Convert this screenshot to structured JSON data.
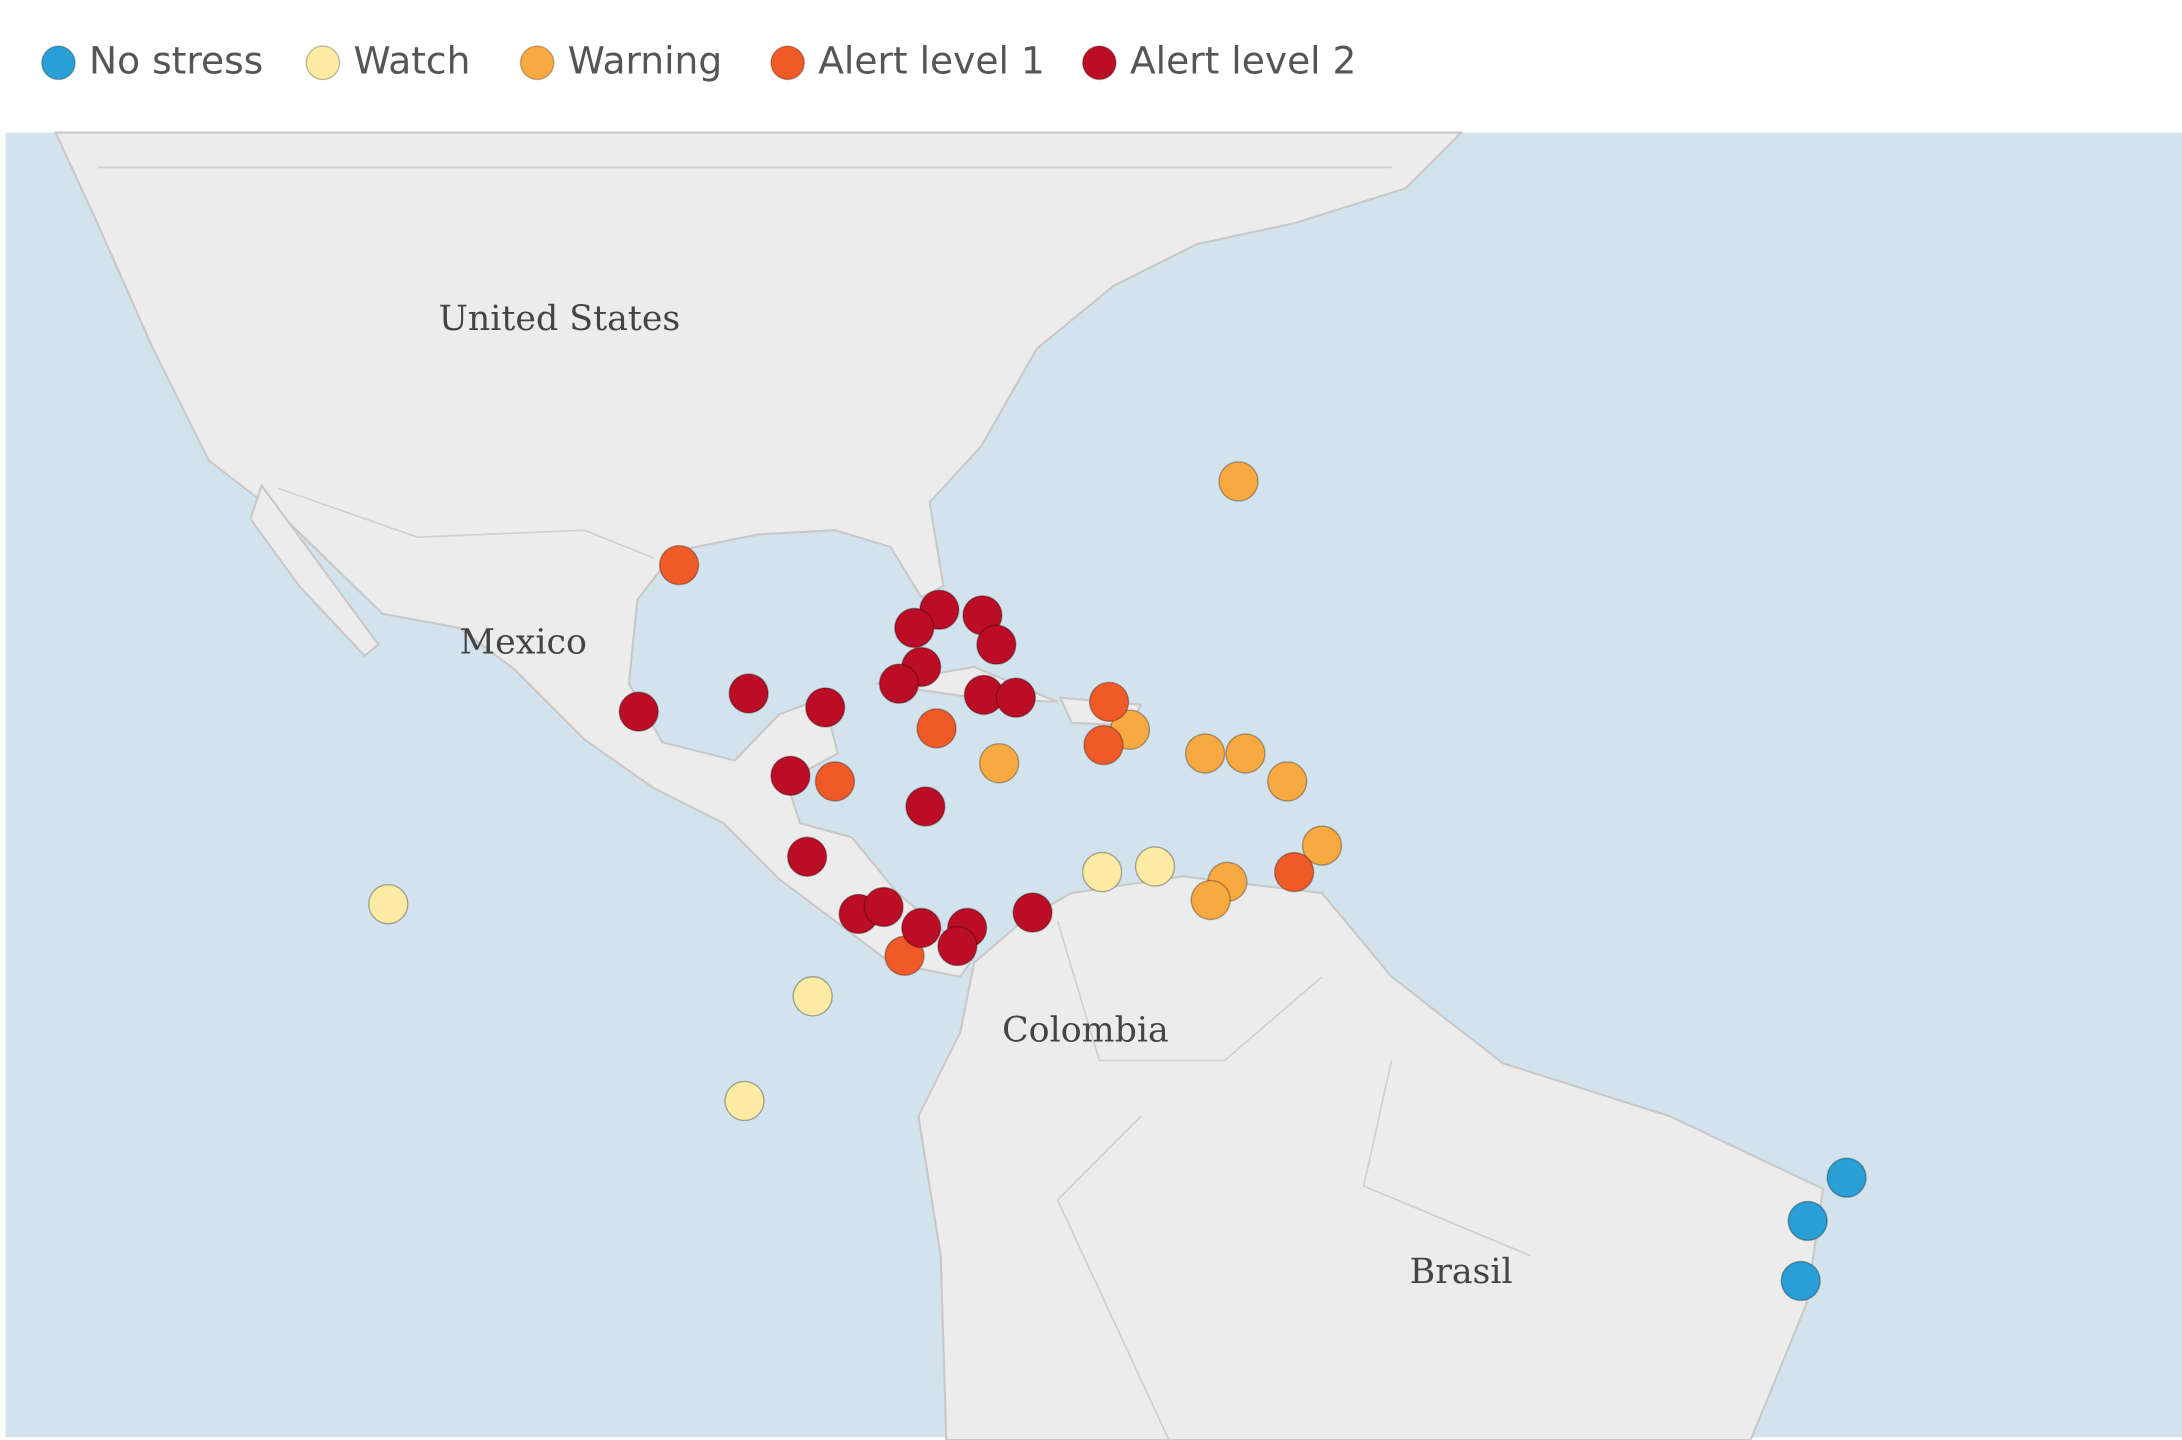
{
  "legend": [
    {
      "label": "No stress",
      "color": "#2a9fd6"
    },
    {
      "label": "Watch",
      "color": "#fdeba4"
    },
    {
      "label": "Warning",
      "color": "#f9a941"
    },
    {
      "label": "Alert level 1",
      "color": "#f05a28"
    },
    {
      "label": "Alert level 2",
      "color": "#bb0d25"
    }
  ],
  "map_labels": [
    "United States",
    "Mexico",
    "Colombia",
    "Brasil"
  ]
}
